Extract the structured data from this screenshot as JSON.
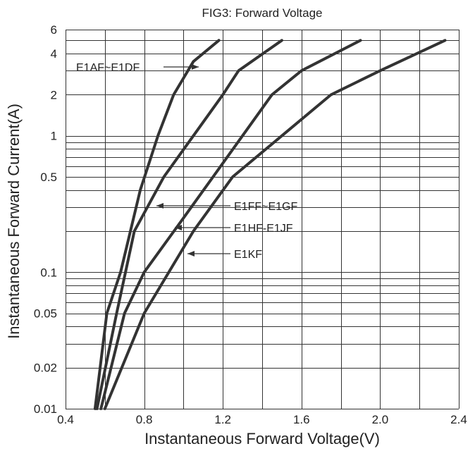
{
  "chart_data": {
    "type": "line",
    "title": "FIG3: Forward Voltage",
    "xlabel": "Instantaneous Forward Voltage(V)",
    "ylabel": "Instantaneous Forward Current(A)",
    "xlim": [
      0.4,
      2.4
    ],
    "ylim": [
      0.01,
      6
    ],
    "yscale": "log",
    "grid": true,
    "x_ticks": [
      {
        "value": 0.4,
        "label": "0.4"
      },
      {
        "value": 0.8,
        "label": "0.8"
      },
      {
        "value": 1.2,
        "label": "1.2"
      },
      {
        "value": 1.6,
        "label": "1.6"
      },
      {
        "value": 2.0,
        "label": "2.0"
      },
      {
        "value": 2.4,
        "label": "2.4"
      }
    ],
    "y_ticks": [
      {
        "value": 0.01,
        "label": "0.01"
      },
      {
        "value": 0.02,
        "label": "0.02"
      },
      {
        "value": 0.05,
        "label": "0.05"
      },
      {
        "value": 0.1,
        "label": "0.1"
      },
      {
        "value": 0.5,
        "label": "0.5"
      },
      {
        "value": 1,
        "label": "1"
      },
      {
        "value": 2,
        "label": "2"
      },
      {
        "value": 4,
        "label": "4"
      },
      {
        "value": 6,
        "label": "6"
      }
    ],
    "series": [
      {
        "name": "E1AF~E1DF",
        "points": [
          [
            0.55,
            0.01
          ],
          [
            0.61,
            0.05
          ],
          [
            0.68,
            0.1
          ],
          [
            0.78,
            0.4
          ],
          [
            0.87,
            1.0
          ],
          [
            0.95,
            2.0
          ],
          [
            1.05,
            3.5
          ],
          [
            1.18,
            5.0
          ]
        ]
      },
      {
        "name": "E1FF~E1GF",
        "points": [
          [
            0.56,
            0.01
          ],
          [
            0.66,
            0.05
          ],
          [
            0.75,
            0.2
          ],
          [
            0.9,
            0.5
          ],
          [
            1.05,
            1.0
          ],
          [
            1.2,
            2.0
          ],
          [
            1.28,
            3.0
          ],
          [
            1.5,
            5.0
          ]
        ]
      },
      {
        "name": "E1HF-E1JF",
        "points": [
          [
            0.58,
            0.01
          ],
          [
            0.7,
            0.05
          ],
          [
            0.8,
            0.1
          ],
          [
            1.0,
            0.25
          ],
          [
            1.15,
            0.5
          ],
          [
            1.3,
            1.0
          ],
          [
            1.45,
            2.0
          ],
          [
            1.6,
            3.0
          ],
          [
            1.9,
            5.0
          ]
        ]
      },
      {
        "name": "E1KF",
        "points": [
          [
            0.6,
            0.01
          ],
          [
            0.8,
            0.05
          ],
          [
            1.05,
            0.2
          ],
          [
            1.25,
            0.5
          ],
          [
            1.5,
            1.0
          ],
          [
            1.75,
            2.0
          ],
          [
            2.0,
            3.0
          ],
          [
            2.33,
            5.0
          ]
        ]
      }
    ],
    "annotations": [
      {
        "label": "E1AF~E1DF",
        "series": 0
      },
      {
        "label": "E1FF~E1GF",
        "series": 1
      },
      {
        "label": "E1HF-E1JF",
        "series": 2
      },
      {
        "label": "E1KF",
        "series": 3
      }
    ]
  }
}
